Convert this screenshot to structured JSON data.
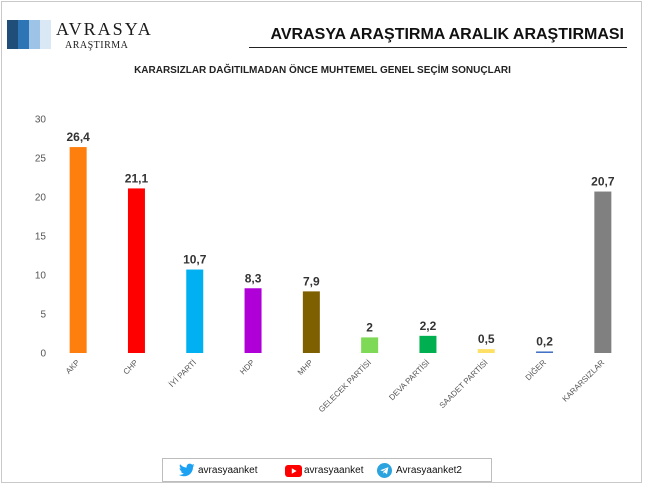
{
  "header": {
    "logo_name": "AVRASYA",
    "logo_sub": "ARAŞTIRMA",
    "report_title": "AVRASYA ARAŞTIRMA ARALIK ARAŞTIRMASI",
    "logo_colors": [
      "#1f4e79",
      "#2e75b6",
      "#9dc3e6",
      "#dae8f5"
    ]
  },
  "chart_data": {
    "type": "bar",
    "title": "KARARSIZLAR DAĞITILMADAN ÖNCE MUHTEMEL GENEL SEÇİM SONUÇLARI",
    "xlabel": "",
    "ylabel": "",
    "categories": [
      "AKP",
      "CHP",
      "İYİ PARTİ",
      "HDP",
      "MHP",
      "GELECEK PARTİSİ",
      "DEVA PARTİSİ",
      "SAADET PARTİSİ",
      "DİĞER",
      "KARARSIZLAR"
    ],
    "values": [
      26.4,
      21.1,
      10.7,
      8.3,
      7.9,
      2,
      2.2,
      0.5,
      0.2,
      20.7
    ],
    "value_labels": [
      "26,4",
      "21,1",
      "10,7",
      "8,3",
      "7,9",
      "2",
      "2,2",
      "0,5",
      "0,2",
      "20,7"
    ],
    "colors": [
      "#ff7f0e",
      "#ff0000",
      "#00b0f0",
      "#b000d8",
      "#7f6000",
      "#7ed957",
      "#00b050",
      "#ffe066",
      "#4472c4",
      "#808080"
    ],
    "ylim": [
      0,
      30
    ],
    "yticks": [
      0,
      5,
      10,
      15,
      20,
      25,
      30
    ],
    "grid": false,
    "legend": "none"
  },
  "footer": {
    "twitter_handle": "avrasyaanket",
    "youtube_handle": "avrasyaanket",
    "telegram_handle": "Avrasyaanket2",
    "twitter_icon": "twitter-icon",
    "youtube_icon": "youtube-icon",
    "telegram_icon": "telegram-icon"
  }
}
